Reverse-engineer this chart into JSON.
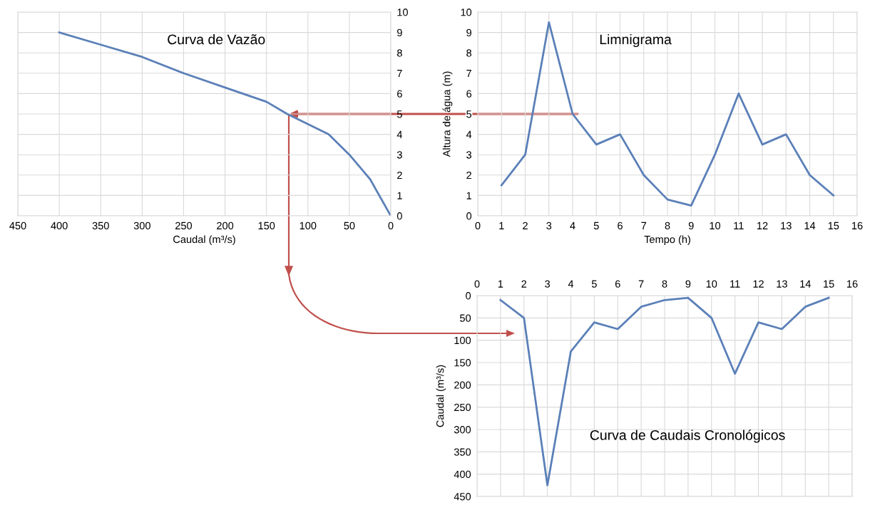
{
  "chart_data": [
    {
      "type": "line",
      "title": "Curva de Vazão",
      "xlabel": "Caudal (m³/s)",
      "x": [
        400,
        350,
        300,
        250,
        200,
        150,
        125,
        100,
        75,
        50,
        25,
        0
      ],
      "series": [
        {
          "color": "#5b80b8",
          "values": [
            9,
            8.4,
            7.8,
            7,
            6.3,
            5.6,
            5,
            4.5,
            4,
            3,
            1.8,
            0
          ]
        }
      ],
      "xlim": [
        450,
        0
      ],
      "xticks": [
        450,
        400,
        350,
        300,
        250,
        200,
        150,
        100,
        50,
        0
      ],
      "ylim": [
        0,
        10
      ],
      "yticks": [
        0,
        1,
        2,
        3,
        4,
        5,
        6,
        7,
        8,
        9,
        10
      ],
      "grid": true
    },
    {
      "type": "line",
      "title": "Limnigrama",
      "xlabel": "Tempo (h)",
      "ylabel": "Altura de água (m)",
      "x": [
        1,
        2,
        3,
        4,
        5,
        6,
        7,
        8,
        9,
        10,
        11,
        12,
        13,
        14,
        15
      ],
      "series": [
        {
          "color": "#5b80b8",
          "values": [
            1.5,
            3,
            9.5,
            5,
            3.5,
            4,
            2,
            0.8,
            0.5,
            3,
            6,
            3.5,
            4,
            2,
            1
          ]
        }
      ],
      "xlim": [
        0,
        16
      ],
      "xticks": [
        0,
        1,
        2,
        3,
        4,
        5,
        6,
        7,
        8,
        9,
        10,
        11,
        12,
        13,
        14,
        15,
        16
      ],
      "ylim": [
        0,
        10
      ],
      "yticks": [
        0,
        1,
        2,
        3,
        4,
        5,
        6,
        7,
        8,
        9,
        10
      ],
      "grid": true
    },
    {
      "type": "line",
      "title": "Curva de Caudais Cronológicos",
      "ylabel": "Caudal (m³/s)",
      "x": [
        1,
        2,
        3,
        4,
        5,
        6,
        7,
        8,
        9,
        10,
        11,
        12,
        13,
        14,
        15
      ],
      "series": [
        {
          "color": "#5b80b8",
          "values": [
            10,
            50,
            425,
            125,
            60,
            75,
            25,
            10,
            5,
            50,
            175,
            60,
            75,
            25,
            5
          ]
        }
      ],
      "xlim": [
        0,
        16
      ],
      "xticks": [
        0,
        1,
        2,
        3,
        4,
        5,
        6,
        7,
        8,
        9,
        10,
        11,
        12,
        13,
        14,
        15,
        16
      ],
      "ylim": [
        450,
        0
      ],
      "yticks": [
        0,
        50,
        100,
        150,
        200,
        250,
        300,
        350,
        400,
        450
      ],
      "grid": true
    }
  ]
}
